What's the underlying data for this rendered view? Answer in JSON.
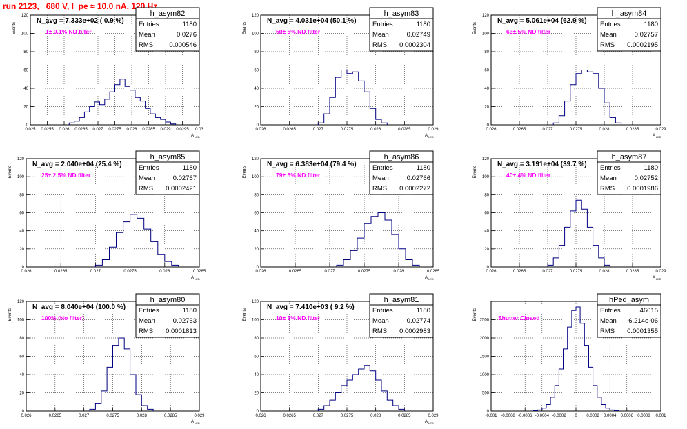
{
  "page_title": "run 2123,   680 V, I_pe ≈ 10.0 nA, 120 Hz",
  "colors": {
    "title": "#ff0000",
    "histogram_line": "#000080",
    "annotation": "#ff00ff",
    "grid": "#000000"
  },
  "chart_data": [
    {
      "type": "histogram",
      "title": "h_asym82",
      "ylabel": "Events",
      "xlabel": "A_LED",
      "header": "N_avg = 7.333e+02 ( 0.9 %)",
      "filter_label": "1± 0.1% ND filter",
      "stats": [
        [
          "Entries",
          "1180"
        ],
        [
          "Mean",
          "0.0276"
        ],
        [
          "RMS",
          "0.000546"
        ]
      ],
      "xlim": [
        0.025,
        0.03
      ],
      "ylim": [
        0,
        120
      ],
      "xticks": [
        "0.025",
        "0.0255",
        "0.026",
        "0.0265",
        "0.027",
        "0.0275",
        "0.028",
        "0.0285",
        "0.029",
        "0.0295",
        "0.03"
      ],
      "yticks": [
        "0",
        "20",
        "40",
        "60",
        "80",
        "100",
        "120"
      ],
      "bin_edges": [
        0.02615,
        0.0263,
        0.02645,
        0.0266,
        0.02675,
        0.0269,
        0.02705,
        0.0272,
        0.02735,
        0.0275,
        0.02765,
        0.0278,
        0.02795,
        0.0281,
        0.02825,
        0.0284,
        0.02855,
        0.0287,
        0.02885,
        0.029,
        0.02915,
        0.0293
      ],
      "counts": [
        2,
        4,
        8,
        14,
        20,
        25,
        22,
        28,
        36,
        44,
        50,
        42,
        38,
        30,
        26,
        18,
        12,
        8,
        6,
        3,
        1
      ]
    },
    {
      "type": "histogram",
      "title": "h_asym83",
      "ylabel": "Events",
      "xlabel": "A_LED",
      "header": "N_avg = 4.031e+04 (50.1 %)",
      "filter_label": "50± 5% ND filter",
      "stats": [
        [
          "Entries",
          "1180"
        ],
        [
          "Mean",
          "0.02749"
        ],
        [
          "RMS",
          "0.0002304"
        ]
      ],
      "xlim": [
        0.026,
        0.029
      ],
      "ylim": [
        0,
        120
      ],
      "xticks": [
        "0.026",
        "0.0265",
        "0.027",
        "0.0275",
        "0.028",
        "0.0285",
        "0.029"
      ],
      "yticks": [
        "0",
        "20",
        "40",
        "60",
        "80",
        "100",
        "120"
      ],
      "bin_edges": [
        0.027,
        0.0271,
        0.0272,
        0.0273,
        0.0274,
        0.0275,
        0.0276,
        0.0277,
        0.0278,
        0.0279,
        0.028,
        0.0281,
        0.0282
      ],
      "counts": [
        2,
        12,
        30,
        52,
        60,
        56,
        58,
        48,
        36,
        18,
        6,
        2
      ]
    },
    {
      "type": "histogram",
      "title": "h_asym84",
      "ylabel": "Events",
      "xlabel": "A_LED",
      "header": "N_avg = 5.061e+04 (62.9 %)",
      "filter_label": "63± 5% ND filter",
      "stats": [
        [
          "Entries",
          "1180"
        ],
        [
          "Mean",
          "0.02757"
        ],
        [
          "RMS",
          "0.0002195"
        ]
      ],
      "xlim": [
        0.026,
        0.029
      ],
      "ylim": [
        0,
        120
      ],
      "xticks": [
        "0.026",
        "0.0265",
        "0.027",
        "0.0275",
        "0.028",
        "0.0285",
        "0.029"
      ],
      "yticks": [
        "0",
        "20",
        "40",
        "60",
        "80",
        "100",
        "120"
      ],
      "bin_edges": [
        0.0271,
        0.0272,
        0.0273,
        0.0274,
        0.0275,
        0.0276,
        0.0277,
        0.0278,
        0.0279,
        0.028,
        0.0281,
        0.0282,
        0.0283
      ],
      "counts": [
        2,
        10,
        26,
        44,
        56,
        60,
        58,
        56,
        40,
        24,
        8,
        2
      ]
    },
    {
      "type": "histogram",
      "title": "h_asym85",
      "ylabel": "Events",
      "xlabel": "A_LED",
      "header": "N_avg = 2.040e+04 (25.4 %)",
      "filter_label": "25± 2.5% ND filter",
      "stats": [
        [
          "Entries",
          "1180"
        ],
        [
          "Mean",
          "0.02767"
        ],
        [
          "RMS",
          "0.0002421"
        ]
      ],
      "xlim": [
        0.026,
        0.0285
      ],
      "ylim": [
        0,
        120
      ],
      "xticks": [
        "0.026",
        "0.0265",
        "0.027",
        "0.0275",
        "0.028",
        "0.0285"
      ],
      "yticks": [
        "0",
        "20",
        "40",
        "60",
        "80",
        "100",
        "120"
      ],
      "bin_edges": [
        0.027,
        0.0271,
        0.0272,
        0.0273,
        0.0274,
        0.0275,
        0.0276,
        0.0277,
        0.0278,
        0.0279,
        0.028,
        0.0281,
        0.0282
      ],
      "counts": [
        2,
        8,
        22,
        38,
        50,
        58,
        54,
        42,
        28,
        14,
        6,
        2
      ]
    },
    {
      "type": "histogram",
      "title": "h_asym86",
      "ylabel": "Events",
      "xlabel": "A_LED",
      "header": "N_avg = 6.383e+04 (79.4 %)",
      "filter_label": "79± 5% ND filter",
      "stats": [
        [
          "Entries",
          "1180"
        ],
        [
          "Mean",
          "0.02766"
        ],
        [
          "RMS",
          "0.0002272"
        ]
      ],
      "xlim": [
        0.026,
        0.0285
      ],
      "ylim": [
        0,
        120
      ],
      "xticks": [
        "0.026",
        "0.0265",
        "0.027",
        "0.0275",
        "0.028",
        "0.0285"
      ],
      "yticks": [
        "0",
        "20",
        "40",
        "60",
        "80",
        "100",
        "120"
      ],
      "bin_edges": [
        0.0271,
        0.0272,
        0.0273,
        0.0274,
        0.0275,
        0.0276,
        0.0277,
        0.0278,
        0.0279,
        0.028,
        0.0281,
        0.0282,
        0.0283
      ],
      "counts": [
        2,
        8,
        18,
        32,
        48,
        56,
        60,
        52,
        36,
        20,
        8,
        2
      ]
    },
    {
      "type": "histogram",
      "title": "h_asym87",
      "ylabel": "Events",
      "xlabel": "A_LED",
      "header": "N_avg = 3.191e+04 (39.7 %)",
      "filter_label": "40± 4% ND filter",
      "stats": [
        [
          "Entries",
          "1180"
        ],
        [
          "Mean",
          "0.02752"
        ],
        [
          "RMS",
          "0.0001986"
        ]
      ],
      "xlim": [
        0.026,
        0.029
      ],
      "ylim": [
        0,
        120
      ],
      "xticks": [
        "0.026",
        "0.0265",
        "0.027",
        "0.0275",
        "0.028",
        "0.0285",
        "0.029"
      ],
      "yticks": [
        "0",
        "20",
        "40",
        "60",
        "80",
        "100",
        "120"
      ],
      "bin_edges": [
        0.027,
        0.0271,
        0.0272,
        0.0273,
        0.0274,
        0.0275,
        0.0276,
        0.0277,
        0.0278,
        0.0279,
        0.028,
        0.0281
      ],
      "counts": [
        2,
        10,
        24,
        44,
        62,
        74,
        64,
        44,
        24,
        10,
        2
      ]
    },
    {
      "type": "histogram",
      "title": "h_asym80",
      "ylabel": "Events",
      "xlabel": "A_LED",
      "header": "N_avg = 8.040e+04 (100.0 %)",
      "filter_label": "100% (No filter)",
      "stats": [
        [
          "Entries",
          "1180"
        ],
        [
          "Mean",
          "0.02763"
        ],
        [
          "RMS",
          "0.0001813"
        ]
      ],
      "xlim": [
        0.026,
        0.029
      ],
      "ylim": [
        0,
        120
      ],
      "xticks": [
        "0.026",
        "0.0265",
        "0.027",
        "0.0275",
        "0.028",
        "0.0285",
        "0.029"
      ],
      "yticks": [
        "0",
        "20",
        "40",
        "60",
        "80",
        "100",
        "120"
      ],
      "bin_edges": [
        0.0271,
        0.0272,
        0.0273,
        0.0274,
        0.0275,
        0.0276,
        0.0277,
        0.0278,
        0.0279,
        0.028,
        0.0281,
        0.0282
      ],
      "counts": [
        2,
        8,
        22,
        48,
        72,
        80,
        68,
        40,
        18,
        6,
        2
      ]
    },
    {
      "type": "histogram",
      "title": "h_asym81",
      "ylabel": "Events",
      "xlabel": "A_LED",
      "header": "N_avg = 7.410e+03 ( 9.2 %)",
      "filter_label": "10± 1% ND filter",
      "stats": [
        [
          "Entries",
          "1180"
        ],
        [
          "Mean",
          "0.02774"
        ],
        [
          "RMS",
          "0.0002983"
        ]
      ],
      "xlim": [
        0.026,
        0.029
      ],
      "ylim": [
        0,
        120
      ],
      "xticks": [
        "0.026",
        "0.0265",
        "0.027",
        "0.0275",
        "0.028",
        "0.0285",
        "0.029"
      ],
      "yticks": [
        "0",
        "20",
        "40",
        "60",
        "80",
        "100",
        "120"
      ],
      "bin_edges": [
        0.027,
        0.0271,
        0.0272,
        0.0273,
        0.0274,
        0.0275,
        0.0276,
        0.0277,
        0.0278,
        0.0279,
        0.028,
        0.0281,
        0.0282,
        0.0283,
        0.0284,
        0.0285
      ],
      "counts": [
        2,
        6,
        12,
        20,
        28,
        34,
        40,
        46,
        50,
        44,
        34,
        22,
        12,
        6,
        2
      ]
    },
    {
      "type": "histogram",
      "title": "hPed_asym",
      "ylabel": "Events",
      "xlabel": "",
      "header": "",
      "filter_label": "Shutter Closed",
      "stats": [
        [
          "Entries",
          "46015"
        ],
        [
          "Mean",
          "-6.214e-06"
        ],
        [
          "RMS",
          "0.0001355"
        ]
      ],
      "xlim": [
        -0.001,
        0.001
      ],
      "ylim": [
        0,
        3000
      ],
      "xticks": [
        "-0.001",
        "-0.0008",
        "-0.0006",
        "-0.0004",
        "-0.0002",
        "0",
        "0.0002",
        "0.0004",
        "0.0006",
        "0.0008",
        "0.001"
      ],
      "yticks": [
        "0",
        "500",
        "1000",
        "1500",
        "2000",
        "2500"
      ],
      "bin_edges": [
        -0.0005,
        -0.00045,
        -0.0004,
        -0.00035,
        -0.0003,
        -0.00025,
        -0.0002,
        -0.00015,
        -0.0001,
        -5e-05,
        0.0,
        5e-05,
        0.0001,
        0.00015,
        0.0002,
        0.00025,
        0.0003,
        0.00035,
        0.0004,
        0.00045,
        0.0005
      ],
      "counts": [
        10,
        30,
        80,
        180,
        380,
        700,
        1150,
        1700,
        2300,
        2750,
        2850,
        2400,
        1800,
        1200,
        700,
        380,
        180,
        80,
        30,
        10
      ]
    }
  ]
}
